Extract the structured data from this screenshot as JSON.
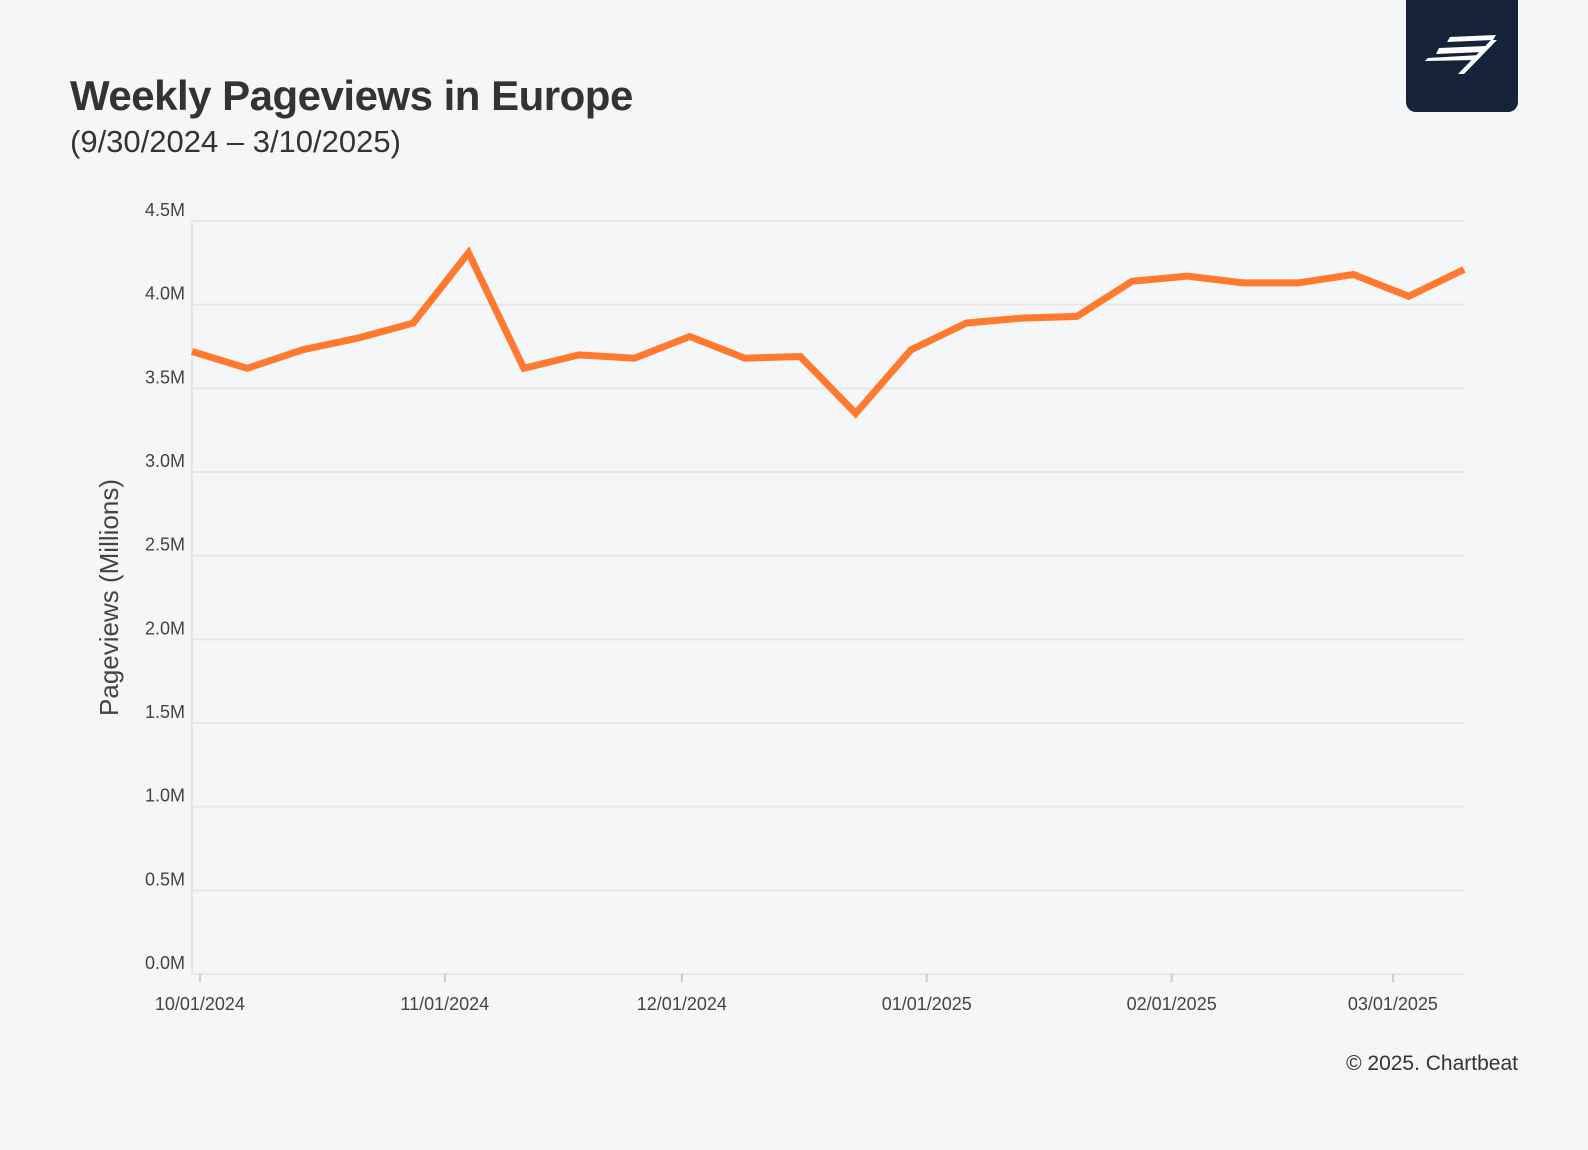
{
  "header": {
    "title": "Weekly Pageviews in Europe",
    "subtitle": "(9/30/2024 – 3/10/2025)"
  },
  "logo": {
    "icon": "chartbeat-logo-icon",
    "background": "#14233a"
  },
  "footer": {
    "copyright": "© 2025. Chartbeat"
  },
  "colors": {
    "line": "#ff7a2f",
    "grid": "#e6e6e6",
    "background": "#f5f6f8"
  },
  "chart_data": {
    "type": "line",
    "title": "Weekly Pageviews in Europe",
    "subtitle": "(9/30/2024 – 3/10/2025)",
    "xlabel": "",
    "ylabel": "Pageviews (Millions)",
    "ylim": [
      0,
      4.5
    ],
    "xlim": [
      "2024-09-30",
      "2025-03-10"
    ],
    "y_ticks": [
      0,
      0.5,
      1.0,
      1.5,
      2.0,
      2.5,
      3.0,
      3.5,
      4.0,
      4.5
    ],
    "y_tick_labels": [
      "0.0M",
      "0.5M",
      "1.0M",
      "1.5M",
      "2.0M",
      "2.5M",
      "3.0M",
      "3.5M",
      "4.0M",
      "4.5M"
    ],
    "x_ticks": [
      "2024-10-01",
      "2024-11-01",
      "2024-12-01",
      "2025-01-01",
      "2025-02-01",
      "2025-03-01"
    ],
    "x_tick_labels": [
      "10/01/2024",
      "11/01/2024",
      "12/01/2024",
      "01/01/2025",
      "02/01/2025",
      "03/01/2025"
    ],
    "grid": true,
    "legend": "none",
    "series": [
      {
        "x": [
          "2024-09-30",
          "2024-10-07",
          "2024-10-14",
          "2024-10-21",
          "2024-10-28",
          "2024-11-04",
          "2024-11-11",
          "2024-11-18",
          "2024-11-25",
          "2024-12-02",
          "2024-12-09",
          "2024-12-16",
          "2024-12-23",
          "2024-12-30",
          "2025-01-06",
          "2025-01-13",
          "2025-01-20",
          "2025-01-27",
          "2025-02-03",
          "2025-02-10",
          "2025-02-17",
          "2025-02-24",
          "2025-03-03",
          "2025-03-10"
        ],
        "values": [
          3.72,
          3.62,
          3.73,
          3.8,
          3.89,
          4.31,
          3.62,
          3.7,
          3.68,
          3.81,
          3.68,
          3.69,
          3.35,
          3.73,
          3.89,
          3.92,
          3.93,
          4.14,
          4.17,
          4.13,
          4.13,
          4.18,
          4.05,
          4.21
        ]
      }
    ]
  }
}
